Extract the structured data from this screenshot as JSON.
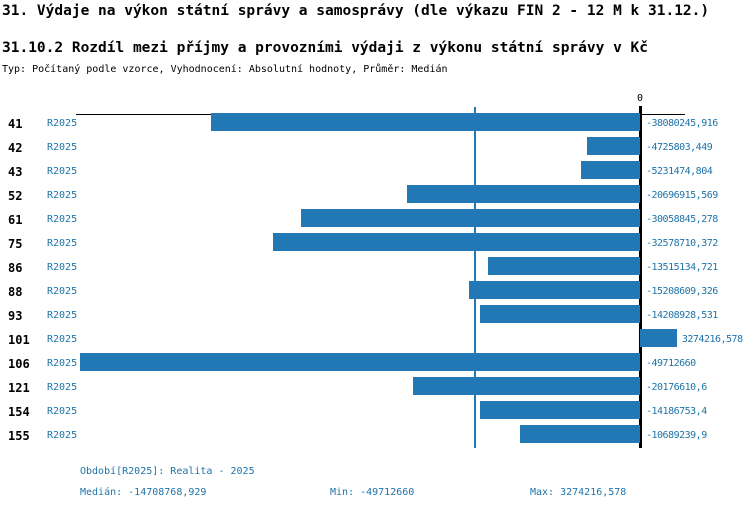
{
  "title": "31. Výdaje na výkon státní správy a samosprávy (dle výkazu FIN 2 - 12 M k 31.12.)",
  "subtitle": "31.10.2 Rozdíl mezi příjmy a provozními výdaji z výkonu státní správy v Kč",
  "meta_line": "Typ: Počítaný podle vzorce, Vyhodnocení: Absolutní hodnoty, Průměr: Medián",
  "colors": {
    "bar": "#2277B5",
    "median_line": "#2277B5",
    "accent_text": "#1E73A9",
    "axis": "#000000"
  },
  "chart_data": {
    "type": "bar",
    "orientation": "horizontal",
    "axis_zero_label": "0",
    "series_label": "R2025",
    "categories": [
      "41",
      "42",
      "43",
      "52",
      "61",
      "75",
      "86",
      "88",
      "93",
      "101",
      "106",
      "121",
      "154",
      "155"
    ],
    "values": [
      -38080245.916,
      -4725803.449,
      -5231474.804,
      -20696915.569,
      -30058845.278,
      -32578710.372,
      -13515134.721,
      -15208609.326,
      -14208928.531,
      3274216.578,
      -49712660,
      -20176610.6,
      -14186753.4,
      -10689239.9
    ],
    "value_labels": [
      "-38080245,916",
      "-4725803,449",
      "-5231474,804",
      "-20696915,569",
      "-30058845,278",
      "-32578710,372",
      "-13515134,721",
      "-15208609,326",
      "-14208928,531",
      "3274216,578",
      "-49712660",
      "-20176610,6",
      "-14186753,4",
      "-10689239,9"
    ],
    "xlim": [
      -49712660,
      3274216.578
    ],
    "median": -14708768.929,
    "grid": false,
    "legend": "none"
  },
  "footer": {
    "period": "Období[R2025]: Realita - 2025",
    "median": "Medián: -14708768,929",
    "min": "Min: -49712660",
    "max": "Max: 3274216,578"
  }
}
